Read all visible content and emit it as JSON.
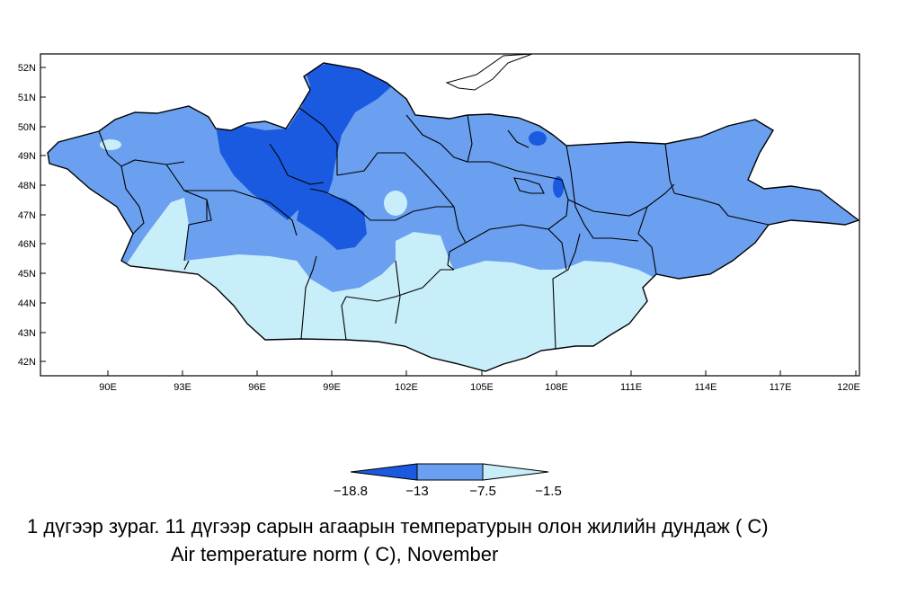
{
  "map": {
    "lon_ticks": [
      "90E",
      "93E",
      "96E",
      "99E",
      "102E",
      "105E",
      "108E",
      "111E",
      "114E",
      "117E",
      "120E"
    ],
    "lat_ticks": [
      "42N",
      "43N",
      "44N",
      "45N",
      "46N",
      "47N",
      "48N",
      "49N",
      "50N",
      "51N",
      "52N"
    ],
    "colors": {
      "coldest": "#1a5ae0",
      "cold": "#6aa0ef",
      "mild": "#c8eef9",
      "border": "#000000"
    }
  },
  "legend": {
    "labels": [
      "−18.8",
      "−13",
      "−7.5",
      "−1.5"
    ]
  },
  "caption": {
    "mn": "1 дүгээр зураг. 11 дүгээр сарын агаарын температурын олон жилийн дундаж ( С)",
    "en": "Air temperature norm ( С), November"
  }
}
